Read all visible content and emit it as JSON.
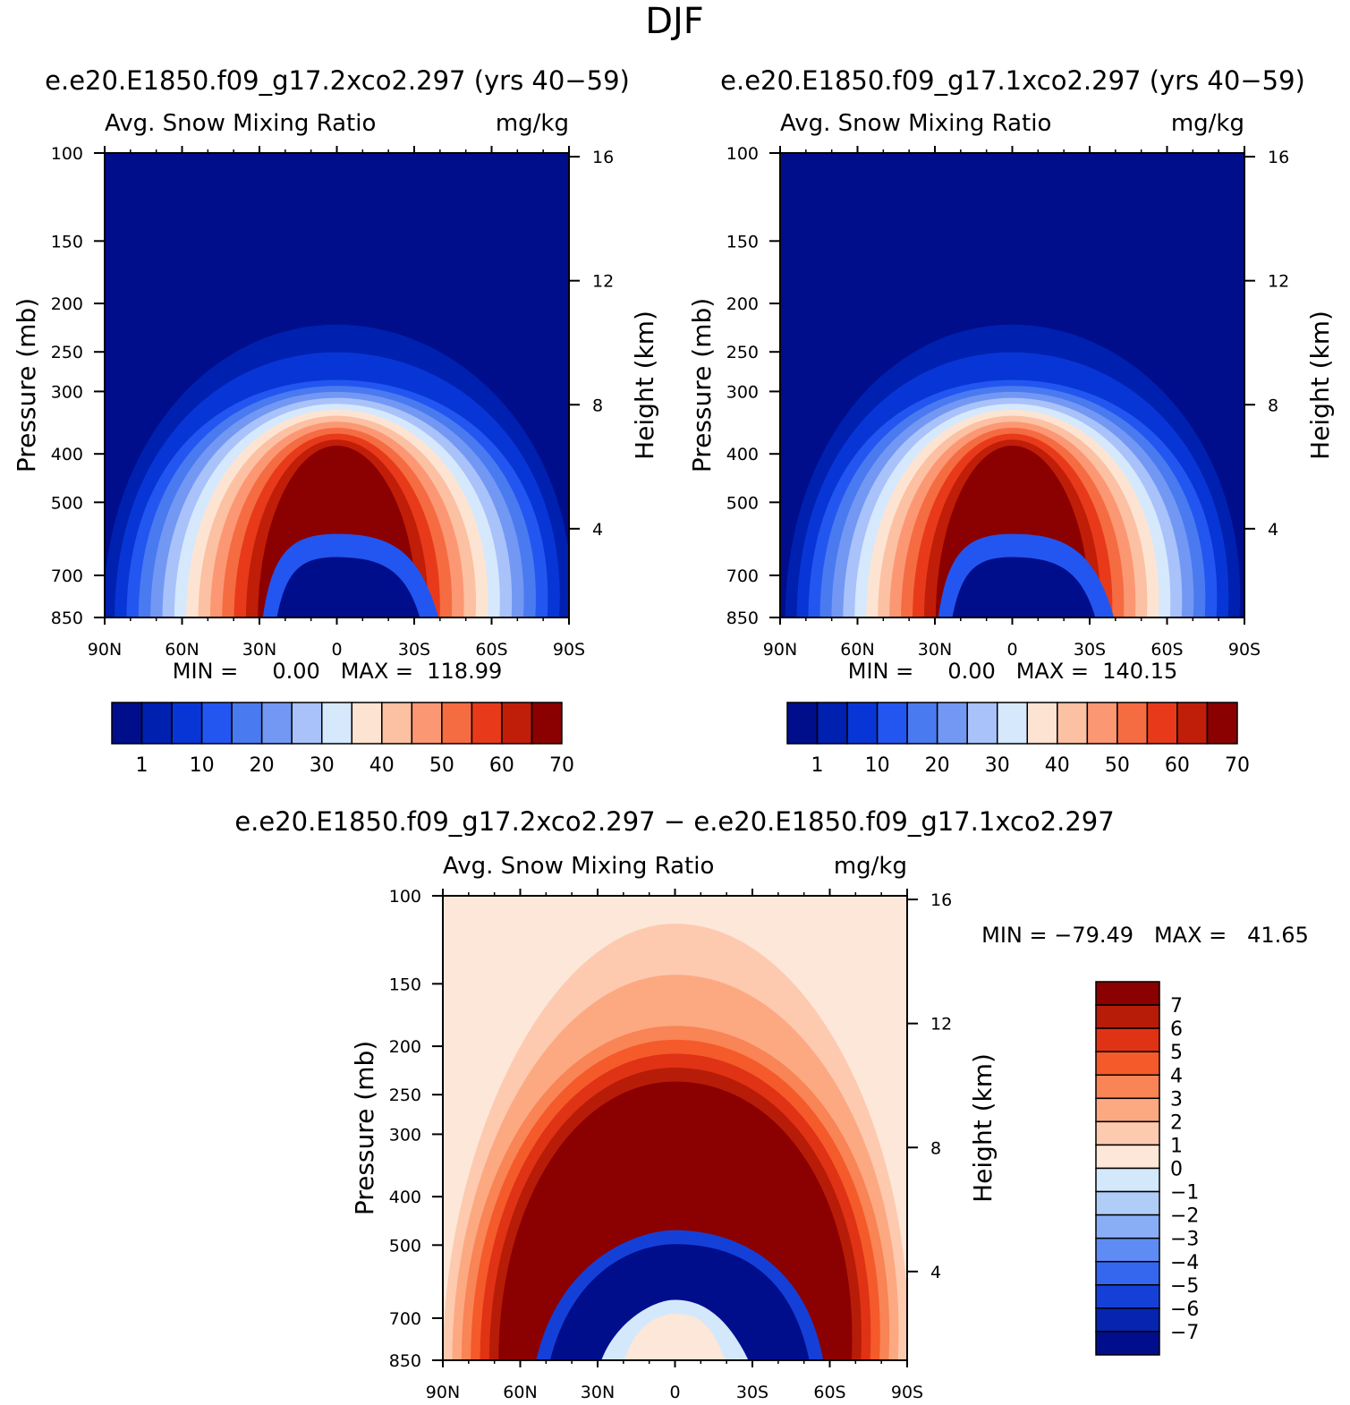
{
  "figure": {
    "title": "DJF"
  },
  "chart_data": [
    {
      "type": "heatmap",
      "panel": "top-left",
      "title": "e.e20.E1850.f09_g17.2xco2.297 (yrs 40−59)",
      "subtitle_left": "Avg. Snow Mixing Ratio",
      "subtitle_right": "mg/kg",
      "ylabel": "Pressure (mb)",
      "y2label": "Height (km)",
      "xticks": [
        "90N",
        "60N",
        "30N",
        "0",
        "30S",
        "60S",
        "90S"
      ],
      "yticks": [
        "100",
        "150",
        "200",
        "250",
        "300",
        "400",
        "500",
        "700",
        "850"
      ],
      "y2ticks": [
        "16",
        "12",
        "8",
        "4"
      ],
      "xlim": [
        90,
        -90
      ],
      "ylim": [
        100,
        850
      ],
      "stats": "MIN =     0.00   MAX =  118.99",
      "min": 0.0,
      "max": 118.99,
      "colorbar": {
        "orientation": "horizontal",
        "labels": [
          "1",
          "10",
          "20",
          "30",
          "40",
          "50",
          "60",
          "70"
        ],
        "colors": [
          "#000e8c",
          "#0020b0",
          "#0836d6",
          "#2356f0",
          "#4a7af0",
          "#7298f4",
          "#a9c2fa",
          "#d6e8fc",
          "#fde4d2",
          "#fcc0a2",
          "#fc9774",
          "#f56c42",
          "#e83a1a",
          "#c01e08",
          "#8b0000"
        ]
      }
    },
    {
      "type": "heatmap",
      "panel": "top-right",
      "title": "e.e20.E1850.f09_g17.1xco2.297 (yrs 40−59)",
      "subtitle_left": "Avg. Snow Mixing Ratio",
      "subtitle_right": "mg/kg",
      "ylabel": "Pressure (mb)",
      "y2label": "Height (km)",
      "xticks": [
        "90N",
        "60N",
        "30N",
        "0",
        "30S",
        "60S",
        "90S"
      ],
      "yticks": [
        "100",
        "150",
        "200",
        "250",
        "300",
        "400",
        "500",
        "700",
        "850"
      ],
      "y2ticks": [
        "16",
        "12",
        "8",
        "4"
      ],
      "xlim": [
        90,
        -90
      ],
      "ylim": [
        100,
        850
      ],
      "stats": "MIN =     0.00   MAX =  140.15",
      "min": 0.0,
      "max": 140.15,
      "colorbar": {
        "orientation": "horizontal",
        "labels": [
          "1",
          "10",
          "20",
          "30",
          "40",
          "50",
          "60",
          "70"
        ],
        "colors": [
          "#000e8c",
          "#0020b0",
          "#0836d6",
          "#2356f0",
          "#4a7af0",
          "#7298f4",
          "#a9c2fa",
          "#d6e8fc",
          "#fde4d2",
          "#fcc0a2",
          "#fc9774",
          "#f56c42",
          "#e83a1a",
          "#c01e08",
          "#8b0000"
        ]
      }
    },
    {
      "type": "heatmap",
      "panel": "bottom",
      "title": "e.e20.E1850.f09_g17.2xco2.297 − e.e20.E1850.f09_g17.1xco2.297",
      "subtitle_left": "Avg. Snow Mixing Ratio",
      "subtitle_right": "mg/kg",
      "ylabel": "Pressure (mb)",
      "y2label": "Height (km)",
      "xticks": [
        "90N",
        "60N",
        "30N",
        "0",
        "30S",
        "60S",
        "90S"
      ],
      "yticks": [
        "100",
        "150",
        "200",
        "250",
        "300",
        "400",
        "500",
        "700",
        "850"
      ],
      "y2ticks": [
        "16",
        "12",
        "8",
        "4"
      ],
      "xlim": [
        90,
        -90
      ],
      "ylim": [
        100,
        850
      ],
      "stats": "MIN = −79.49   MAX =   41.65",
      "min": -79.49,
      "max": 41.65,
      "colorbar": {
        "orientation": "vertical",
        "labels": [
          "7",
          "6",
          "5",
          "4",
          "3",
          "2",
          "1",
          "0",
          "−1",
          "−2",
          "−3",
          "−4",
          "−5",
          "−6",
          "−7"
        ],
        "colors": [
          "#8b0000",
          "#b71c08",
          "#e03214",
          "#f55a2a",
          "#f98455",
          "#fca982",
          "#fdcab0",
          "#fde7d8",
          "#d4e8fb",
          "#b0cdf8",
          "#8aaef6",
          "#5e8cf4",
          "#3466ee",
          "#1540d8",
          "#0624b0",
          "#000e8c"
        ]
      }
    }
  ]
}
